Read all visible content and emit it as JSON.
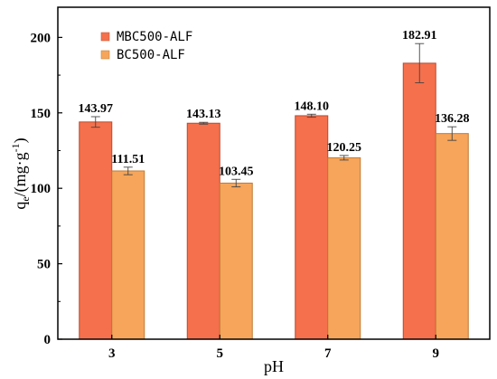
{
  "chart_data": {
    "type": "bar",
    "title": "",
    "xlabel": "pH",
    "ylabel_main": "q",
    "ylabel_sub": "e",
    "ylabel_unit": "/(mg·g",
    "ylabel_sup": "-1",
    "ylabel_close": ")",
    "categories": [
      "3",
      "5",
      "7",
      "9"
    ],
    "ylim": [
      0,
      220
    ],
    "yticks": [
      0,
      50,
      100,
      150,
      200
    ],
    "legend_position": "top-left",
    "grid": false,
    "series": [
      {
        "name": "MBC500-ALF",
        "color": "#f5704c",
        "values": [
          143.97,
          143.13,
          148.1,
          182.91
        ],
        "labels": [
          "143.97",
          "143.13",
          "148.10",
          "182.91"
        ],
        "errors": [
          3.5,
          0.6,
          1.0,
          13.0
        ]
      },
      {
        "name": "BC500-ALF",
        "color": "#f6a55a",
        "values": [
          111.51,
          103.45,
          120.25,
          136.28
        ],
        "labels": [
          "111.51",
          "103.45",
          "120.25",
          "136.28"
        ],
        "errors": [
          2.5,
          2.5,
          1.5,
          4.5
        ]
      }
    ]
  }
}
